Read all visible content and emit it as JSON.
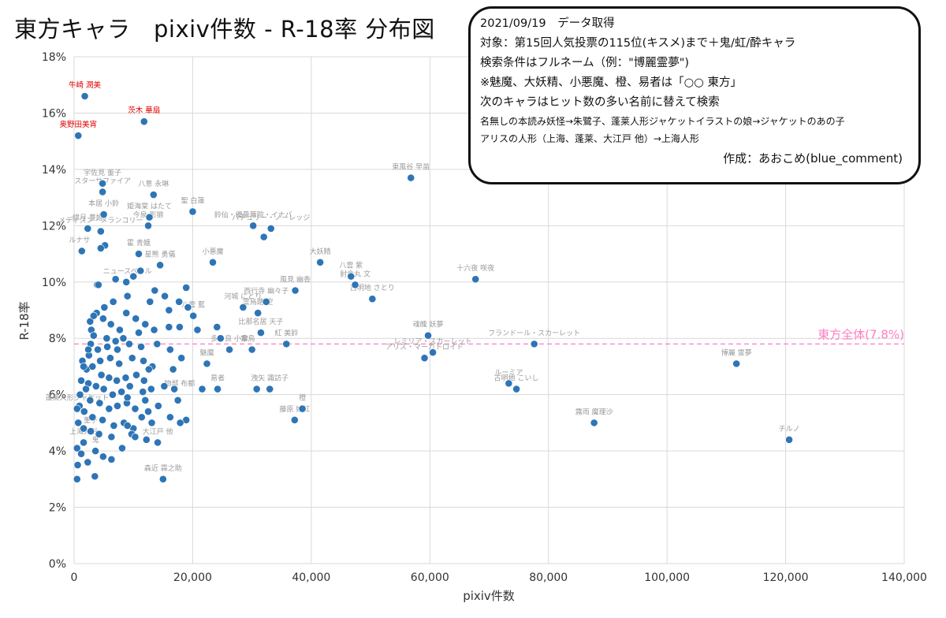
{
  "title": "東方キャラ　pixiv件数 - R-18率 分布図",
  "info_box": {
    "lines": [
      "2021/09/19　データ取得",
      "対象：第15回人気投票の115位(キスメ)まで＋鬼/虹/酔キャラ",
      "検索条件はフルネーム（例：\"博麗霊夢\")",
      "※魅魔、大妖精、小悪魔、橙、易者は「○○ 東方」",
      "次のキャラはヒット数の多い名前に替えて検索"
    ],
    "small_lines": [
      "名無しの本読み妖怪→朱鷺子、蓬莱人形ジャケットイラストの娘→ジャケットのあの子",
      "アリスの人形（上海、蓬莱、大江戸 他）→上海人形"
    ],
    "author": "作成：あおこめ(blue_comment)"
  },
  "colors": {
    "point": "#2E75B6",
    "reference": "#FF7DC4",
    "highlight_label": "#E00000",
    "label": "#9A9A9A",
    "grid": "#D9D9D9"
  },
  "chart_data": {
    "type": "scatter",
    "xlabel": "pixiv件数",
    "ylabel": "R-18率",
    "xlim": [
      0,
      140000
    ],
    "ylim": [
      0,
      0.18
    ],
    "x_ticks": [
      "0",
      "20,000",
      "40,000",
      "60,000",
      "80,000",
      "100,000",
      "120,000",
      "140,000"
    ],
    "y_ticks": [
      "0%",
      "2%",
      "4%",
      "6%",
      "8%",
      "10%",
      "12%",
      "14%",
      "16%",
      "18%"
    ],
    "grid": "vertical and horizontal",
    "reference_line": {
      "y": 0.078,
      "label": "東方全体(7.8%)"
    },
    "labeled_points": [
      {
        "label": "牛崎 潤美",
        "x": 1800,
        "y": 0.166,
        "highlight": true
      },
      {
        "label": "茨木 華扇",
        "x": 11800,
        "y": 0.157,
        "highlight": true
      },
      {
        "label": "奥野田美宵",
        "x": 700,
        "y": 0.152,
        "highlight": true
      },
      {
        "label": "東風谷 早苗",
        "x": 56800,
        "y": 0.137
      },
      {
        "label": "宇佐見 董子",
        "x": 4800,
        "y": 0.135
      },
      {
        "label": "スターサファイア",
        "x": 4800,
        "y": 0.132
      },
      {
        "label": "八意 永琳",
        "x": 13400,
        "y": 0.131
      },
      {
        "label": "聖 白蓮",
        "x": 20000,
        "y": 0.125
      },
      {
        "label": "本居 小鈴",
        "x": 5000,
        "y": 0.124
      },
      {
        "label": "姫海棠 はたて",
        "x": 12700,
        "y": 0.123
      },
      {
        "label": "今泉 影狼",
        "x": 12500,
        "y": 0.12
      },
      {
        "label": "鈴仙・優曇華院・イナバ",
        "x": 30200,
        "y": 0.12
      },
      {
        "label": "パチュリー・ノーレッジ",
        "x": 33200,
        "y": 0.119
      },
      {
        "label": "綿月 豊姫",
        "x": 2300,
        "y": 0.119
      },
      {
        "label": "メディスン・メランコリー",
        "x": 4500,
        "y": 0.118
      },
      {
        "label": "霍 青娥",
        "x": 10900,
        "y": 0.11
      },
      {
        "label": "小悪魔",
        "x": 23400,
        "y": 0.107
      },
      {
        "label": "大妖精",
        "x": 41500,
        "y": 0.107
      },
      {
        "label": "星熊 勇儀",
        "x": 14500,
        "y": 0.106
      },
      {
        "label": "十六夜 咲夜",
        "x": 67700,
        "y": 0.101
      },
      {
        "label": "八雲 紫",
        "x": 46700,
        "y": 0.102
      },
      {
        "label": "射命丸 文",
        "x": 47400,
        "y": 0.099
      },
      {
        "label": "古明地 さとり",
        "x": 50300,
        "y": 0.094
      },
      {
        "label": "風見 幽香",
        "x": 37300,
        "y": 0.097
      },
      {
        "label": "西行寺 幽々子",
        "x": 32400,
        "y": 0.093
      },
      {
        "label": "霊烏路 空",
        "x": 31000,
        "y": 0.089
      },
      {
        "label": "比那名居 天子",
        "x": 31500,
        "y": 0.082
      },
      {
        "label": "紅 美鈴",
        "x": 35800,
        "y": 0.078
      },
      {
        "label": "魂魄 妖夢",
        "x": 59700,
        "y": 0.081
      },
      {
        "label": "レミリア・スカーレット",
        "x": 60500,
        "y": 0.075
      },
      {
        "label": "アリス・マーガトロイド",
        "x": 59100,
        "y": 0.073
      },
      {
        "label": "フランドール・スカーレット",
        "x": 77600,
        "y": 0.078
      },
      {
        "label": "博麗 霊夢",
        "x": 111700,
        "y": 0.071
      },
      {
        "label": "ルーミア",
        "x": 73300,
        "y": 0.064
      },
      {
        "label": "古明地 こいし",
        "x": 74600,
        "y": 0.062
      },
      {
        "label": "霧雨 魔理沙",
        "x": 87700,
        "y": 0.05
      },
      {
        "label": "チルノ",
        "x": 120600,
        "y": 0.044
      },
      {
        "label": "洩矢 諏訪子",
        "x": 33000,
        "y": 0.062
      },
      {
        "label": "橙",
        "x": 38500,
        "y": 0.055
      },
      {
        "label": "藤原 妹紅",
        "x": 37200,
        "y": 0.051
      },
      {
        "label": "多々良 小傘",
        "x": 26200,
        "y": 0.076
      },
      {
        "label": "魅魔",
        "x": 22400,
        "y": 0.071
      },
      {
        "label": "易者",
        "x": 24200,
        "y": 0.062
      },
      {
        "label": "蓬莱人形ジャケット",
        "x": 500,
        "y": 0.055
      },
      {
        "label": "上海人形",
        "x": 1600,
        "y": 0.043
      },
      {
        "label": "菫子",
        "x": 2800,
        "y": 0.047
      },
      {
        "label": "鬼",
        "x": 3600,
        "y": 0.04
      },
      {
        "label": "大江戸 他",
        "x": 14100,
        "y": 0.043
      },
      {
        "label": "森近 霖之助",
        "x": 15000,
        "y": 0.03
      },
      {
        "label": "八雲 藍",
        "x": 20100,
        "y": 0.088
      },
      {
        "label": "河城 にとり",
        "x": 28500,
        "y": 0.091
      },
      {
        "label": "ルナサ",
        "x": 900,
        "y": 0.111
      },
      {
        "label": "ニュースペール",
        "x": 9000,
        "y": 0.1
      },
      {
        "label": "物部 布都",
        "x": 17800,
        "y": 0.06
      },
      {
        "label": "霊鳥",
        "x": 29300,
        "y": 0.076
      }
    ],
    "points": [
      [
        1800,
        0.166
      ],
      [
        11800,
        0.157
      ],
      [
        700,
        0.152
      ],
      [
        56800,
        0.137
      ],
      [
        4800,
        0.135
      ],
      [
        4800,
        0.132
      ],
      [
        13400,
        0.131
      ],
      [
        20000,
        0.125
      ],
      [
        5000,
        0.124
      ],
      [
        12700,
        0.123
      ],
      [
        12500,
        0.12
      ],
      [
        30200,
        0.12
      ],
      [
        33200,
        0.119
      ],
      [
        2300,
        0.119
      ],
      [
        32000,
        0.116
      ],
      [
        4500,
        0.118
      ],
      [
        5200,
        0.113
      ],
      [
        4500,
        0.112
      ],
      [
        1300,
        0.111
      ],
      [
        10900,
        0.11
      ],
      [
        23400,
        0.107
      ],
      [
        41500,
        0.107
      ],
      [
        14500,
        0.106
      ],
      [
        67700,
        0.101
      ],
      [
        46700,
        0.102
      ],
      [
        47400,
        0.099
      ],
      [
        50300,
        0.094
      ],
      [
        37300,
        0.097
      ],
      [
        32400,
        0.093
      ],
      [
        31000,
        0.089
      ],
      [
        31500,
        0.082
      ],
      [
        35800,
        0.078
      ],
      [
        59700,
        0.081
      ],
      [
        60500,
        0.075
      ],
      [
        59100,
        0.073
      ],
      [
        77600,
        0.078
      ],
      [
        111700,
        0.071
      ],
      [
        73300,
        0.064
      ],
      [
        74600,
        0.062
      ],
      [
        87700,
        0.05
      ],
      [
        120600,
        0.044
      ],
      [
        33000,
        0.062
      ],
      [
        30800,
        0.062
      ],
      [
        38500,
        0.055
      ],
      [
        37200,
        0.051
      ],
      [
        26200,
        0.076
      ],
      [
        22400,
        0.071
      ],
      [
        24200,
        0.062
      ],
      [
        21600,
        0.062
      ],
      [
        24700,
        0.08
      ],
      [
        24100,
        0.084
      ],
      [
        20100,
        0.088
      ],
      [
        28500,
        0.091
      ],
      [
        30000,
        0.076
      ],
      [
        3900,
        0.099
      ],
      [
        4100,
        0.099
      ],
      [
        7000,
        0.101
      ],
      [
        8800,
        0.1
      ],
      [
        10000,
        0.102
      ],
      [
        11200,
        0.104
      ],
      [
        13600,
        0.097
      ],
      [
        15300,
        0.095
      ],
      [
        17700,
        0.093
      ],
      [
        18900,
        0.098
      ],
      [
        19200,
        0.091
      ],
      [
        16000,
        0.09
      ],
      [
        12800,
        0.093
      ],
      [
        9000,
        0.095
      ],
      [
        6600,
        0.093
      ],
      [
        5100,
        0.091
      ],
      [
        3800,
        0.089
      ],
      [
        2700,
        0.086
      ],
      [
        3300,
        0.088
      ],
      [
        4900,
        0.087
      ],
      [
        6200,
        0.085
      ],
      [
        7700,
        0.083
      ],
      [
        8800,
        0.089
      ],
      [
        10400,
        0.087
      ],
      [
        12000,
        0.085
      ],
      [
        13500,
        0.083
      ],
      [
        16000,
        0.084
      ],
      [
        17800,
        0.084
      ],
      [
        20800,
        0.083
      ],
      [
        2900,
        0.083
      ],
      [
        3300,
        0.081
      ],
      [
        5500,
        0.08
      ],
      [
        7000,
        0.079
      ],
      [
        8300,
        0.08
      ],
      [
        10900,
        0.082
      ],
      [
        2800,
        0.078
      ],
      [
        4000,
        0.076
      ],
      [
        5600,
        0.077
      ],
      [
        7300,
        0.076
      ],
      [
        9300,
        0.078
      ],
      [
        11300,
        0.077
      ],
      [
        14000,
        0.078
      ],
      [
        16200,
        0.076
      ],
      [
        18100,
        0.073
      ],
      [
        2500,
        0.074
      ],
      [
        4400,
        0.072
      ],
      [
        6100,
        0.073
      ],
      [
        7600,
        0.071
      ],
      [
        9800,
        0.073
      ],
      [
        11700,
        0.072
      ],
      [
        13200,
        0.07
      ],
      [
        16700,
        0.069
      ],
      [
        1400,
        0.072
      ],
      [
        2100,
        0.069
      ],
      [
        3100,
        0.07
      ],
      [
        4600,
        0.067
      ],
      [
        5900,
        0.066
      ],
      [
        7200,
        0.065
      ],
      [
        8700,
        0.066
      ],
      [
        10500,
        0.067
      ],
      [
        11800,
        0.065
      ],
      [
        12600,
        0.069
      ],
      [
        1200,
        0.065
      ],
      [
        2400,
        0.064
      ],
      [
        3700,
        0.063
      ],
      [
        5000,
        0.062
      ],
      [
        6500,
        0.06
      ],
      [
        8000,
        0.061
      ],
      [
        9400,
        0.063
      ],
      [
        11600,
        0.061
      ],
      [
        13000,
        0.062
      ],
      [
        15200,
        0.063
      ],
      [
        16900,
        0.062
      ],
      [
        1000,
        0.06
      ],
      [
        2700,
        0.058
      ],
      [
        4300,
        0.057
      ],
      [
        5900,
        0.055
      ],
      [
        7300,
        0.056
      ],
      [
        8900,
        0.057
      ],
      [
        10300,
        0.055
      ],
      [
        12500,
        0.054
      ],
      [
        14200,
        0.056
      ],
      [
        17500,
        0.058
      ],
      [
        18900,
        0.051
      ],
      [
        900,
        0.056
      ],
      [
        1700,
        0.054
      ],
      [
        3100,
        0.052
      ],
      [
        4800,
        0.051
      ],
      [
        6700,
        0.049
      ],
      [
        8400,
        0.05
      ],
      [
        10000,
        0.048
      ],
      [
        11400,
        0.052
      ],
      [
        13100,
        0.05
      ],
      [
        16200,
        0.052
      ],
      [
        17900,
        0.05
      ],
      [
        500,
        0.055
      ],
      [
        700,
        0.05
      ],
      [
        1600,
        0.048
      ],
      [
        2800,
        0.047
      ],
      [
        4200,
        0.046
      ],
      [
        6300,
        0.045
      ],
      [
        9000,
        0.049
      ],
      [
        9700,
        0.046
      ],
      [
        12200,
        0.044
      ],
      [
        1600,
        0.043
      ],
      [
        3600,
        0.04
      ],
      [
        4900,
        0.038
      ],
      [
        6300,
        0.037
      ],
      [
        8100,
        0.041
      ],
      [
        10300,
        0.045
      ],
      [
        14100,
        0.043
      ],
      [
        500,
        0.041
      ],
      [
        1200,
        0.039
      ],
      [
        2300,
        0.036
      ],
      [
        600,
        0.035
      ],
      [
        3500,
        0.031
      ],
      [
        500,
        0.03
      ],
      [
        15000,
        0.03
      ],
      [
        2000,
        0.062
      ],
      [
        1600,
        0.07
      ],
      [
        2400,
        0.076
      ],
      [
        9000,
        0.059
      ],
      [
        12000,
        0.058
      ]
    ]
  }
}
